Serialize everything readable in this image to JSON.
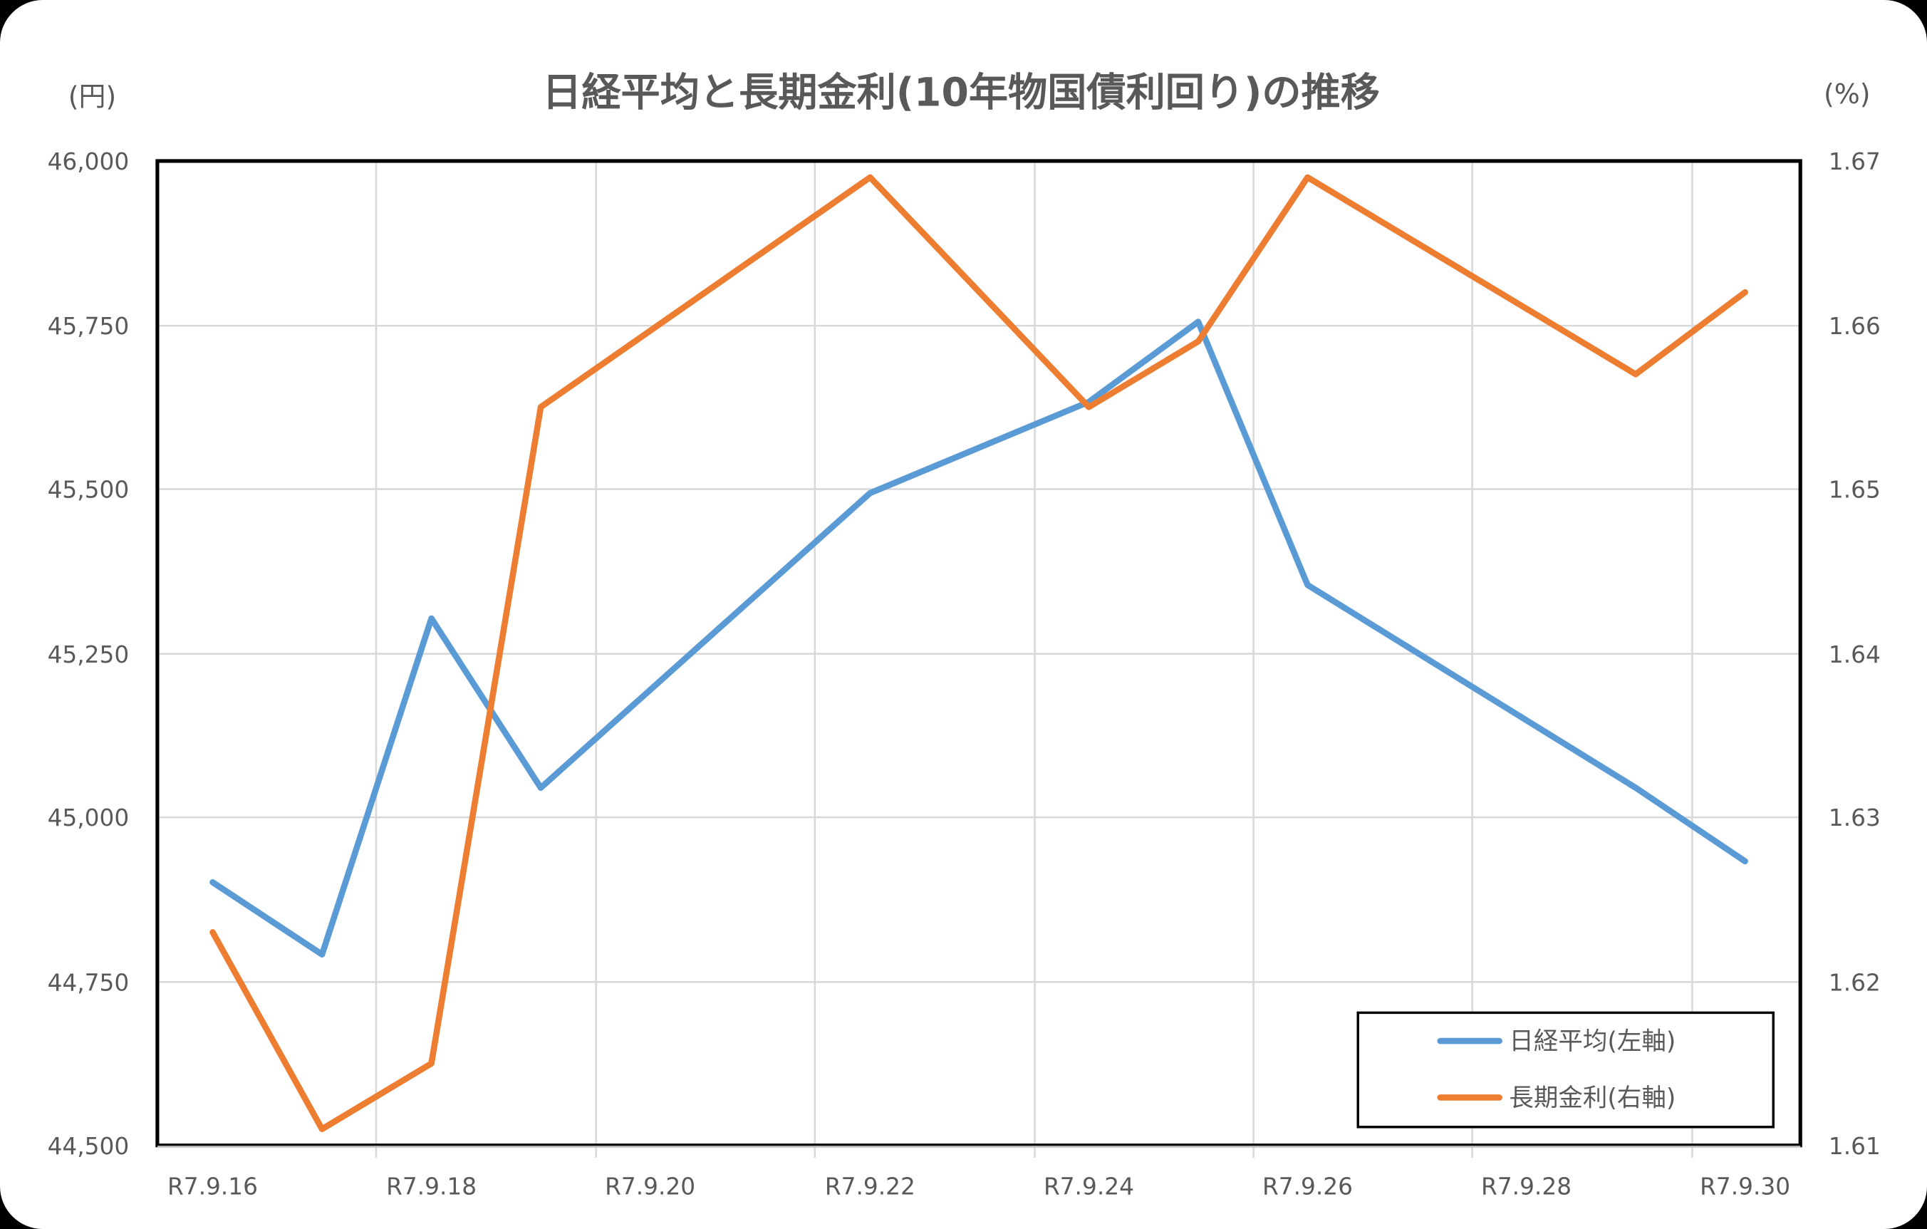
{
  "chart_data": {
    "type": "line",
    "title": "日経平均と長期金利(10年物国債利回り)の推移",
    "left_axis_unit": "(円)",
    "right_axis_unit": "(%)",
    "xlabel": "",
    "ylabel_left": "日経平均 (円)",
    "ylabel_right": "長期金利 (%)",
    "categories": [
      "R7.9.16",
      "R7.9.17",
      "R7.9.18",
      "R7.9.19",
      "R7.9.22",
      "R7.9.24",
      "R7.9.25",
      "R7.9.26",
      "R7.9.29",
      "R7.9.30"
    ],
    "x_tick_labels": [
      "R7.9.16",
      "R7.9.18",
      "R7.9.20",
      "R7.9.22",
      "R7.9.24",
      "R7.9.26",
      "R7.9.28",
      "R7.9.30"
    ],
    "y_left_ticks": [
      "46,000",
      "45,750",
      "45,500",
      "45,250",
      "45,000",
      "44,750",
      "44,500"
    ],
    "y_right_ticks": [
      "1.67",
      "1.66",
      "1.65",
      "1.64",
      "1.63",
      "1.62",
      "1.61"
    ],
    "ylim_left": [
      44500,
      46000
    ],
    "ylim_right": [
      1.61,
      1.67
    ],
    "grid": true,
    "legend_position": "lower-right inside",
    "series": [
      {
        "name": "日経平均(左軸)",
        "axis": "left",
        "color": "#5B9BD5",
        "values": [
          44901,
          44791,
          45303,
          45045,
          45494,
          45633,
          45755,
          45354,
          45045,
          44933
        ]
      },
      {
        "name": "長期金利(右軸)",
        "axis": "right",
        "color": "#ED7D31",
        "values": [
          1.623,
          1.611,
          1.615,
          1.655,
          1.669,
          1.655,
          1.659,
          1.669,
          1.657,
          1.662
        ]
      }
    ]
  },
  "legend": {
    "item1": "日経平均(左軸)",
    "item2": "長期金利(右軸)"
  }
}
